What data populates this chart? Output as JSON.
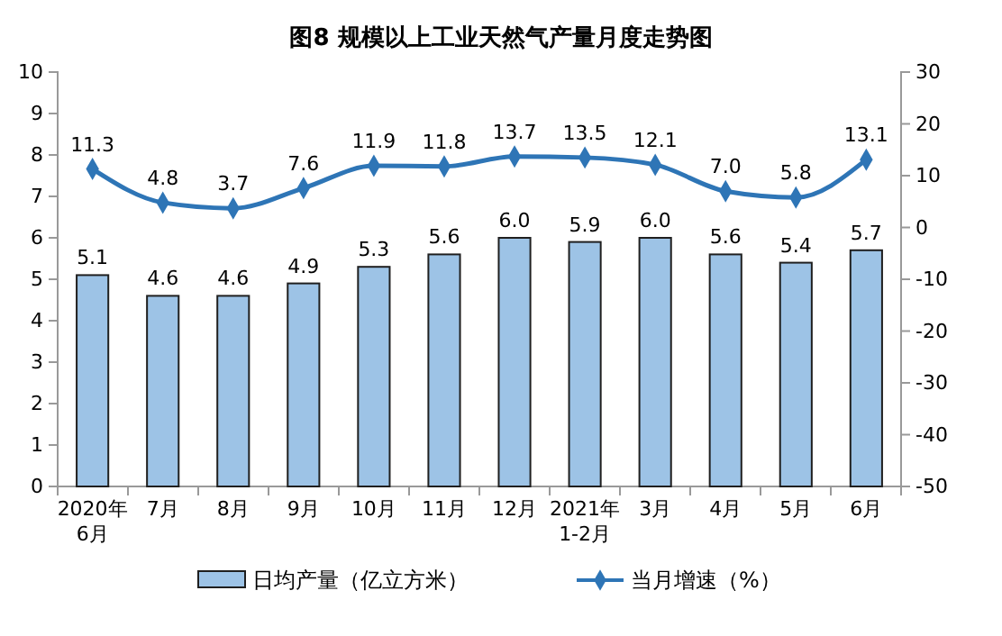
{
  "chart_data": {
    "type": "bar",
    "title": "图8  规模以上工业天然气产量月度走势图",
    "categories": [
      "2020年\n6月",
      "7月",
      "8月",
      "9月",
      "10月",
      "11月",
      "12月",
      "2021年\n1-2月",
      "3月",
      "4月",
      "5月",
      "6月"
    ],
    "series": [
      {
        "name": "日均产量（亿立方米）",
        "color": "#9dc3e6",
        "values": [
          5.1,
          4.6,
          4.6,
          4.9,
          5.3,
          5.6,
          6.0,
          5.9,
          6.0,
          5.6,
          5.4,
          5.7
        ],
        "value_labels": [
          "5.1",
          "4.6",
          "4.6",
          "4.9",
          "5.3",
          "5.6",
          "6.0",
          "5.9",
          "6.0",
          "5.6",
          "5.4",
          "5.7"
        ]
      },
      {
        "name": "当月增速（%）",
        "type": "line",
        "axis": "y2",
        "color": "#2e75b6",
        "marker": "diamond",
        "values": [
          11.3,
          4.8,
          3.7,
          7.6,
          11.9,
          11.8,
          13.7,
          13.5,
          12.1,
          7.0,
          5.8,
          13.1
        ],
        "value_labels": [
          "11.3",
          "4.8",
          "3.7",
          "7.6",
          "11.9",
          "11.8",
          "13.7",
          "13.5",
          "12.1",
          "7.0",
          "5.8",
          "13.1"
        ]
      }
    ],
    "ylim": [
      0,
      10
    ],
    "yticks": [
      0,
      1,
      2,
      3,
      4,
      5,
      6,
      7,
      8,
      9,
      10
    ],
    "y2lim": [
      -50,
      30
    ],
    "y2ticks": [
      -50,
      -40,
      -30,
      -20,
      -10,
      0,
      10,
      20,
      30
    ],
    "grid": false,
    "legend": "bottom"
  }
}
